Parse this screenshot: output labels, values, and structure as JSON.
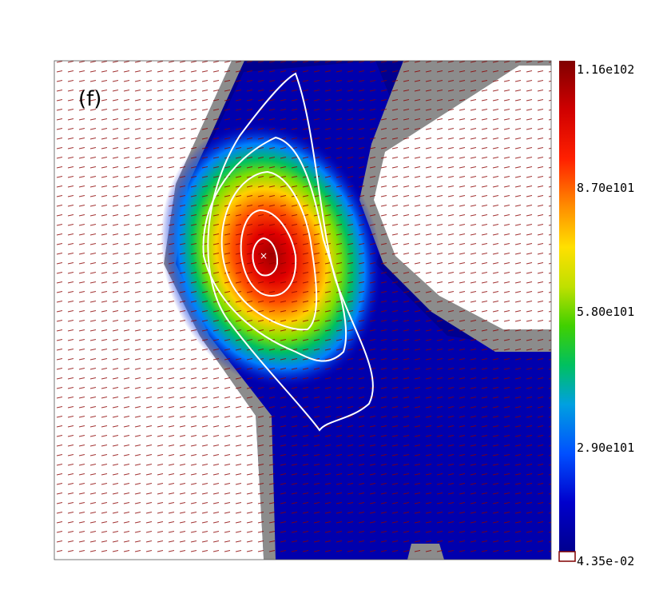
{
  "chart_data": {
    "type": "heatmap",
    "title": "",
    "xlabel": "",
    "ylabel": "",
    "panel_label": "(f)",
    "colorbar": {
      "min": 0.0435,
      "max": 116,
      "tick_labels": [
        "1.16e102",
        "8.70e101",
        "5.80e101",
        "2.90e101",
        "4.35e-02"
      ],
      "colormap": "rainbow"
    },
    "contour_levels": 4,
    "peak_marker": "×",
    "colors": {
      "background": "#ffffff",
      "mask": "#8c8c8c",
      "vectors": "#8b0000",
      "contours": "#ffffff",
      "low": "#00008f",
      "high": "#800000"
    }
  }
}
